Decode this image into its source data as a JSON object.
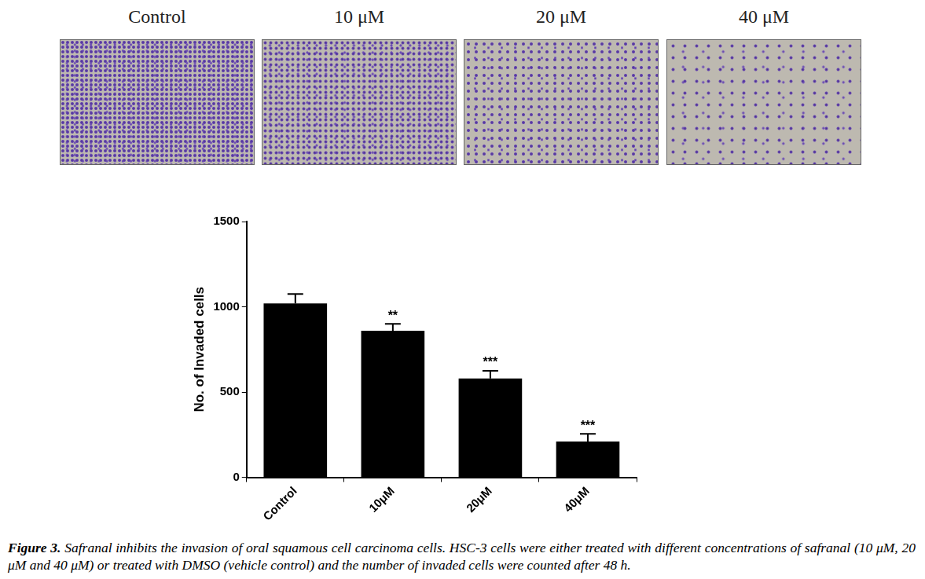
{
  "panels": {
    "labels": [
      "Control",
      "10 μM",
      "20 μM",
      "40 μM"
    ]
  },
  "chart_data": {
    "type": "bar",
    "y_label": "No. of Invaded cells",
    "categories": [
      "Control",
      "10μM",
      "20μM",
      "40μM"
    ],
    "values": [
      1020,
      860,
      580,
      210
    ],
    "errors": [
      55,
      40,
      45,
      45
    ],
    "significance": [
      null,
      "**",
      "***",
      "***"
    ],
    "color": "#000000",
    "ylim": [
      0,
      1500
    ],
    "yticks": [
      0,
      500,
      1000,
      1500
    ],
    "grid": false
  },
  "caption": {
    "label": "Figure 3.",
    "text": "Safranal inhibits the invasion of oral squamous cell carcinoma cells. HSC-3 cells were either treated with different concentrations of safranal (10 μM, 20 μM and 40 μM) or treated with DMSO (vehicle control) and the number of invaded cells were counted after 48 h."
  }
}
